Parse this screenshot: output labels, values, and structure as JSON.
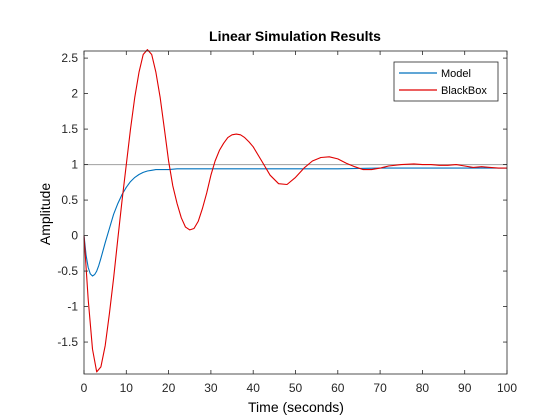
{
  "chart_data": {
    "type": "line",
    "title": "Linear Simulation Results",
    "xlabel": "Time (seconds)",
    "ylabel": "Amplitude",
    "xlim": [
      0,
      100
    ],
    "ylim": [
      -1.95,
      2.6
    ],
    "x_ticks": [
      0,
      10,
      20,
      30,
      40,
      50,
      60,
      70,
      80,
      90,
      100
    ],
    "y_ticks": [
      -1.5,
      -1,
      -0.5,
      0,
      0.5,
      1,
      1.5,
      2,
      2.5
    ],
    "grid": false,
    "legend_position": "top-right",
    "reference_line": {
      "y": 1,
      "color": "#a0a0a0"
    },
    "series": [
      {
        "name": "Model",
        "color": "#0072bd",
        "x": [
          0,
          0.5,
          1,
          1.5,
          2,
          2.5,
          3,
          3.5,
          4,
          5,
          6,
          7,
          8,
          9,
          10,
          11,
          12,
          13,
          14,
          15,
          16,
          17,
          18,
          20,
          22,
          25,
          30,
          40,
          50,
          60,
          70,
          80,
          90,
          100
        ],
        "y": [
          0,
          -0.28,
          -0.45,
          -0.54,
          -0.57,
          -0.55,
          -0.5,
          -0.42,
          -0.32,
          -0.1,
          0.1,
          0.3,
          0.45,
          0.58,
          0.68,
          0.76,
          0.82,
          0.86,
          0.89,
          0.91,
          0.92,
          0.93,
          0.93,
          0.93,
          0.94,
          0.94,
          0.94,
          0.94,
          0.94,
          0.94,
          0.95,
          0.95,
          0.95,
          0.95
        ]
      },
      {
        "name": "BlackBox",
        "color": "#e00000",
        "x": [
          0,
          1,
          2,
          3,
          4,
          5,
          6,
          7,
          8,
          9,
          10,
          11,
          12,
          13,
          14,
          15,
          16,
          17,
          18,
          19,
          20,
          21,
          22,
          23,
          24,
          25,
          26,
          27,
          28,
          29,
          30,
          31,
          32,
          33,
          34,
          35,
          36,
          37,
          38,
          39,
          40,
          42,
          44,
          46,
          48,
          50,
          52,
          54,
          56,
          58,
          60,
          62,
          64,
          66,
          68,
          70,
          72,
          75,
          78,
          80,
          82,
          84,
          86,
          88,
          90,
          92,
          94,
          96,
          98,
          100
        ],
        "y": [
          0,
          -0.9,
          -1.6,
          -1.92,
          -1.85,
          -1.55,
          -1.1,
          -0.6,
          -0.05,
          0.5,
          1.0,
          1.5,
          1.95,
          2.3,
          2.55,
          2.62,
          2.55,
          2.3,
          1.95,
          1.5,
          1.05,
          0.7,
          0.45,
          0.25,
          0.12,
          0.08,
          0.1,
          0.2,
          0.38,
          0.6,
          0.85,
          1.05,
          1.2,
          1.3,
          1.38,
          1.42,
          1.43,
          1.42,
          1.38,
          1.32,
          1.25,
          1.05,
          0.85,
          0.73,
          0.72,
          0.82,
          0.95,
          1.05,
          1.1,
          1.11,
          1.08,
          1.02,
          0.97,
          0.93,
          0.93,
          0.95,
          0.98,
          1.0,
          1.01,
          1.0,
          1.0,
          0.99,
          0.99,
          1.0,
          0.98,
          0.96,
          0.97,
          0.96,
          0.95,
          0.95
        ]
      }
    ]
  }
}
